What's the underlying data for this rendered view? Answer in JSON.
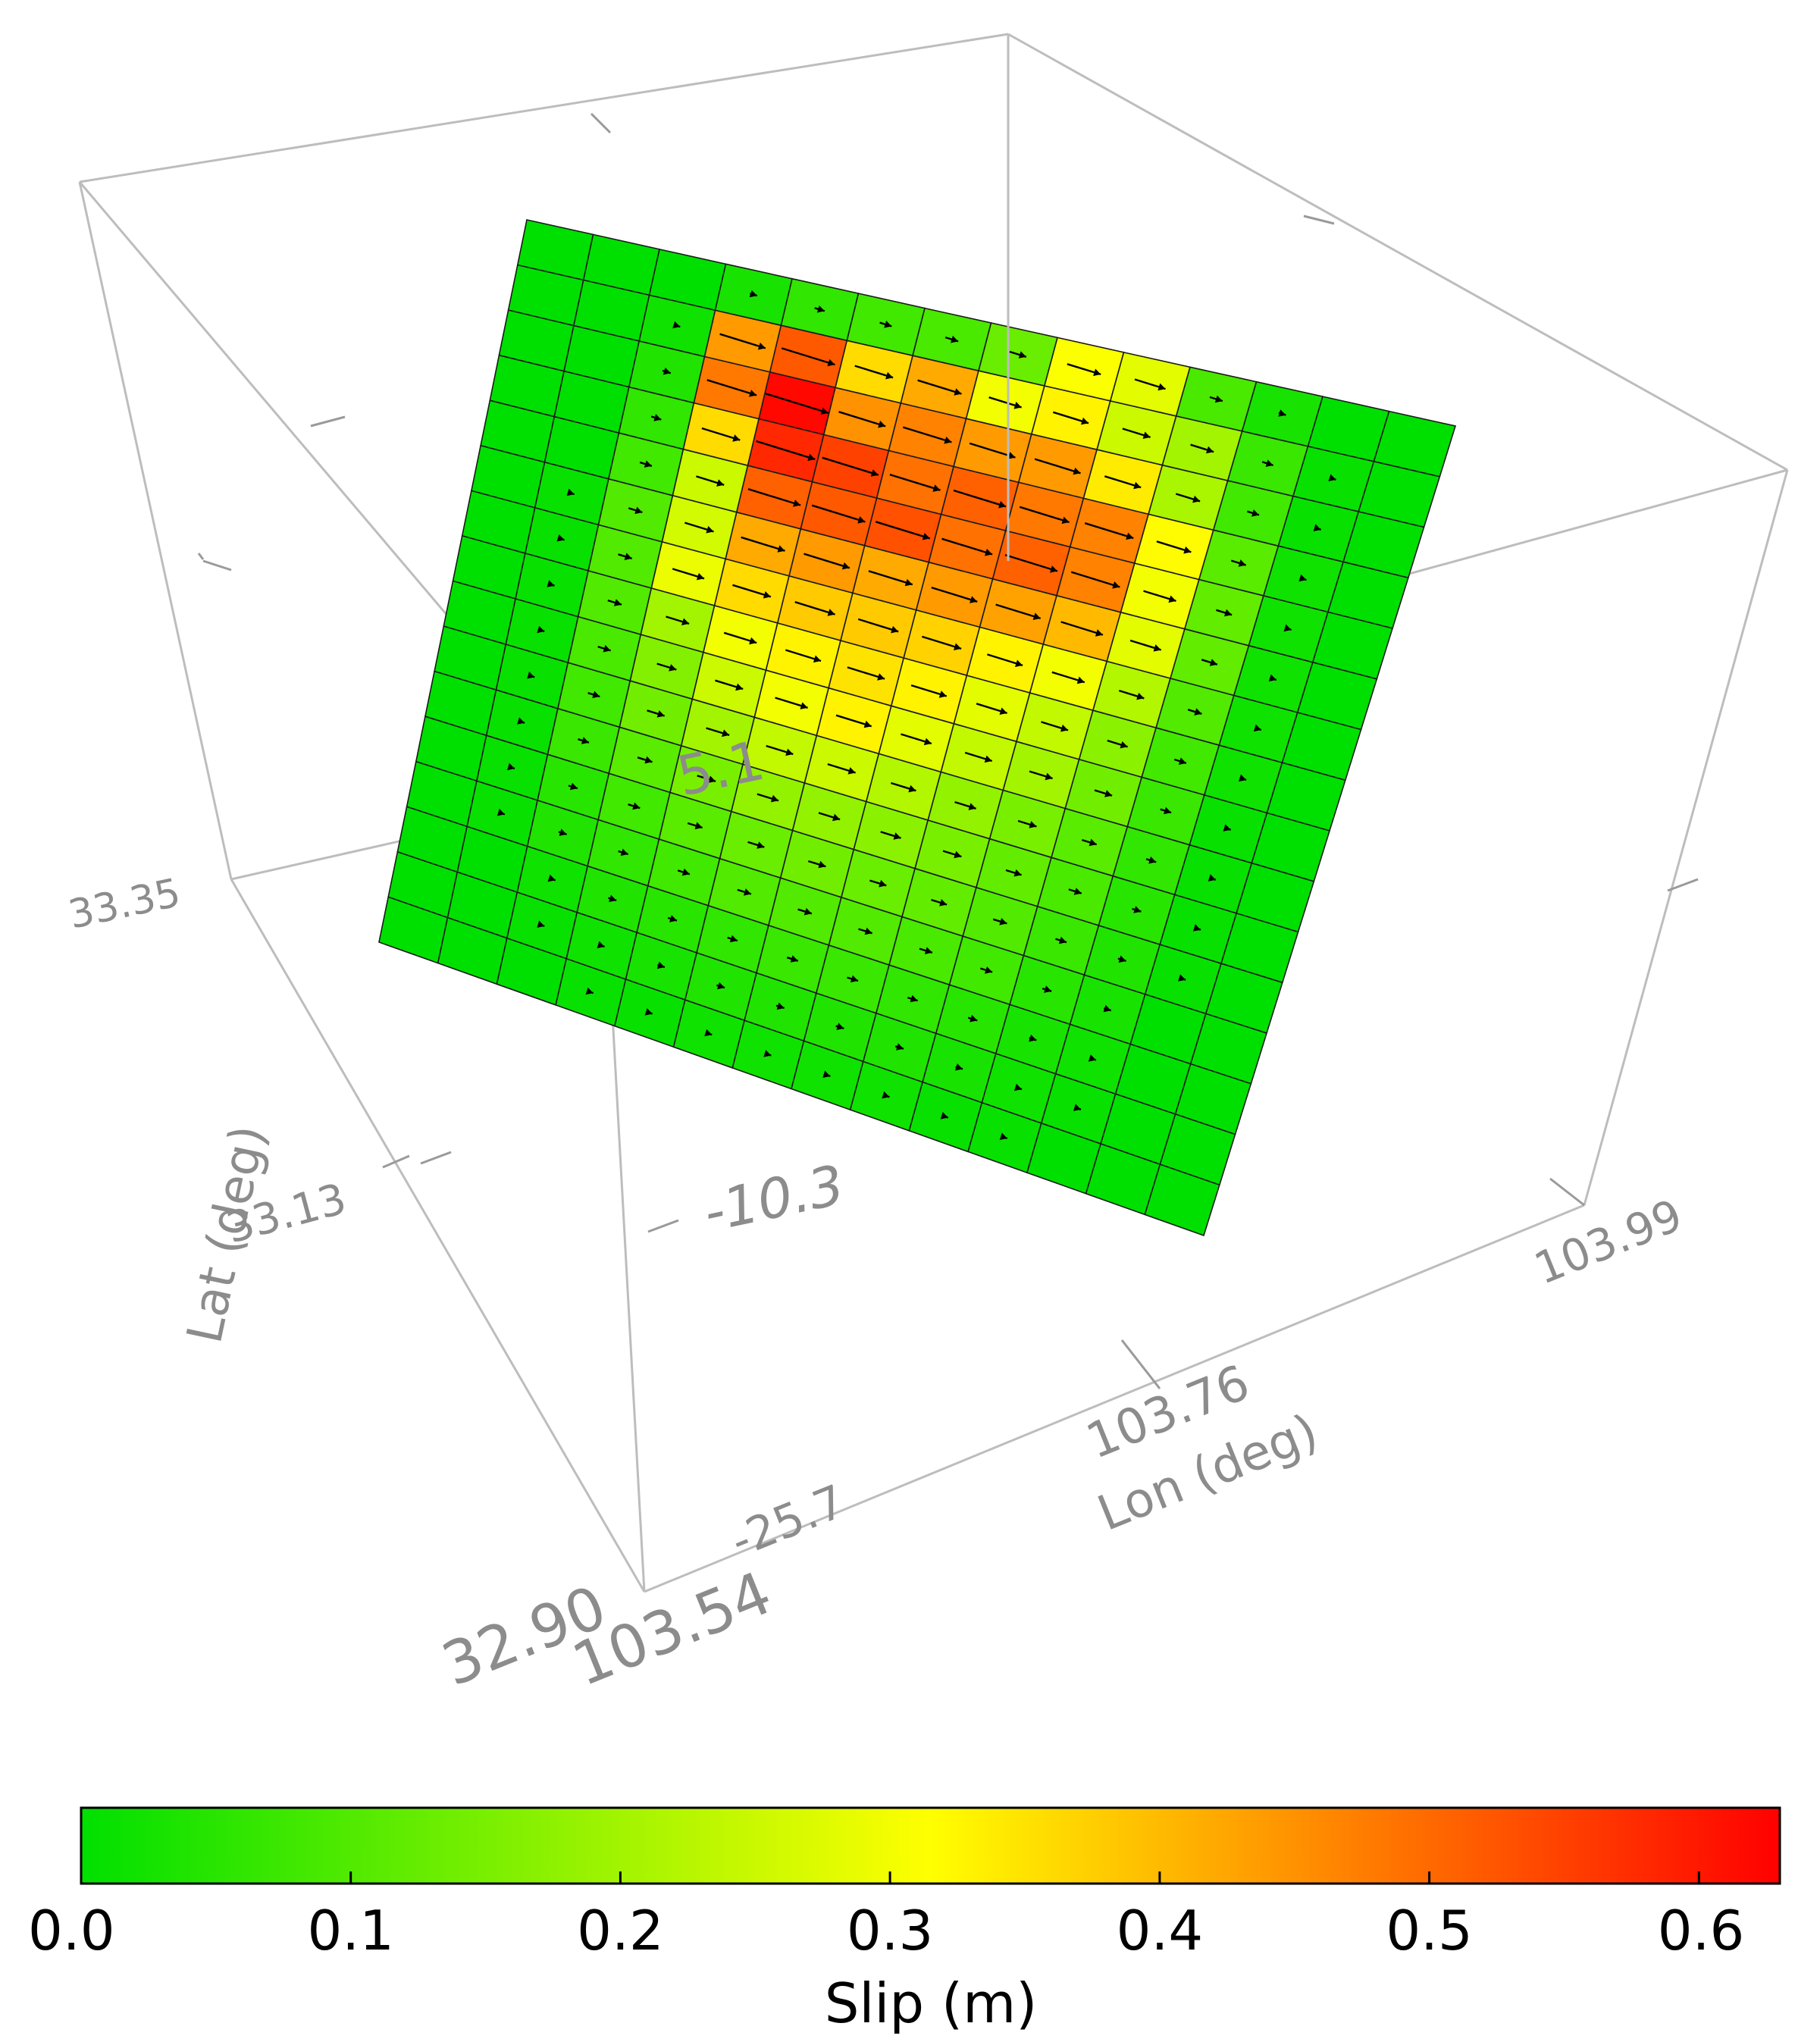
{
  "chart_data": {
    "type": "heatmap",
    "title": "",
    "xlabel": "Lon (deg)",
    "ylabel": "Lat (deg)",
    "zlabel": "",
    "x_ticks": [
      "103.54",
      "103.76",
      "103.99"
    ],
    "y_ticks": [
      "32.90",
      "33.13",
      "33.35"
    ],
    "z_ticks": [
      "-25.7",
      "-10.3",
      "5.1"
    ],
    "colorbar": {
      "label": "Slip (m)",
      "range": [
        0.0,
        0.63
      ],
      "ticks": [
        "0.0",
        "0.1",
        "0.2",
        "0.3",
        "0.4",
        "0.5",
        "0.6"
      ],
      "colors": [
        "#00e000",
        "#ffff00",
        "#ff0000"
      ]
    },
    "grid_cols": 14,
    "grid_rows": 16,
    "rake_arrows": true,
    "slip_rows": [
      [
        0.0,
        0.0,
        0.0,
        0.03,
        0.06,
        0.08,
        0.09,
        0.13,
        0.31,
        0.28,
        0.09,
        0.03,
        0.0,
        0.0
      ],
      [
        0.0,
        0.0,
        0.02,
        0.44,
        0.52,
        0.36,
        0.42,
        0.3,
        0.33,
        0.25,
        0.2,
        0.07,
        0.01,
        0.0
      ],
      [
        0.0,
        0.0,
        0.04,
        0.48,
        0.62,
        0.45,
        0.47,
        0.44,
        0.44,
        0.34,
        0.21,
        0.08,
        0.01,
        0.0
      ],
      [
        0.0,
        0.0,
        0.06,
        0.36,
        0.58,
        0.55,
        0.49,
        0.51,
        0.48,
        0.47,
        0.32,
        0.11,
        0.02,
        0.0
      ],
      [
        0.0,
        0.0,
        0.08,
        0.25,
        0.51,
        0.52,
        0.53,
        0.49,
        0.51,
        0.47,
        0.3,
        0.12,
        0.02,
        0.0
      ],
      [
        0.0,
        0.01,
        0.1,
        0.26,
        0.42,
        0.44,
        0.42,
        0.44,
        0.43,
        0.4,
        0.28,
        0.12,
        0.02,
        0.0
      ],
      [
        0.0,
        0.01,
        0.1,
        0.29,
        0.36,
        0.38,
        0.38,
        0.37,
        0.33,
        0.3,
        0.22,
        0.1,
        0.02,
        0.0
      ],
      [
        0.0,
        0.01,
        0.1,
        0.2,
        0.3,
        0.33,
        0.35,
        0.33,
        0.28,
        0.24,
        0.17,
        0.08,
        0.02,
        0.0
      ],
      [
        0.0,
        0.01,
        0.09,
        0.16,
        0.25,
        0.3,
        0.33,
        0.28,
        0.24,
        0.2,
        0.14,
        0.07,
        0.01,
        0.0
      ],
      [
        0.0,
        0.01,
        0.08,
        0.14,
        0.2,
        0.24,
        0.25,
        0.22,
        0.18,
        0.15,
        0.11,
        0.06,
        0.01,
        0.0
      ],
      [
        0.0,
        0.01,
        0.07,
        0.11,
        0.15,
        0.18,
        0.18,
        0.17,
        0.15,
        0.12,
        0.09,
        0.05,
        0.01,
        0.0
      ],
      [
        0.0,
        0.01,
        0.05,
        0.08,
        0.11,
        0.13,
        0.14,
        0.13,
        0.12,
        0.1,
        0.07,
        0.04,
        0.01,
        0.0
      ],
      [
        0.0,
        0.01,
        0.04,
        0.06,
        0.08,
        0.1,
        0.1,
        0.1,
        0.09,
        0.08,
        0.05,
        0.03,
        0.0,
        0.0
      ],
      [
        0.0,
        0.0,
        0.02,
        0.04,
        0.05,
        0.06,
        0.07,
        0.07,
        0.06,
        0.05,
        0.03,
        0.02,
        0.0,
        0.0
      ],
      [
        0.0,
        0.0,
        0.01,
        0.02,
        0.03,
        0.04,
        0.04,
        0.04,
        0.04,
        0.03,
        0.02,
        0.01,
        0.0,
        0.0
      ],
      [
        0.0,
        0.0,
        0.0,
        0.01,
        0.01,
        0.02,
        0.02,
        0.02,
        0.02,
        0.01,
        0.01,
        0.0,
        0.0,
        0.0
      ]
    ]
  }
}
